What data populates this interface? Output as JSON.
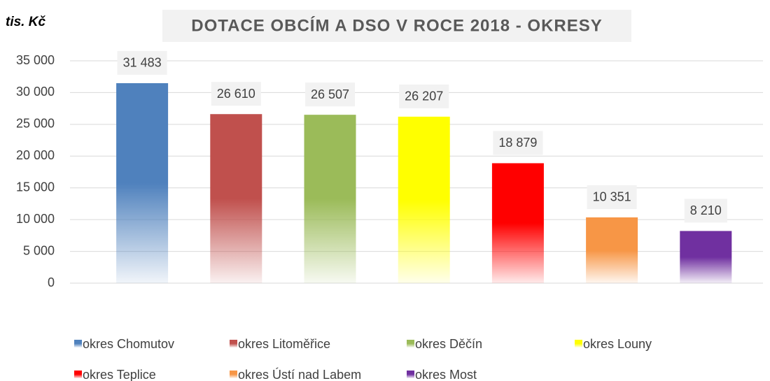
{
  "chart_data": {
    "type": "bar",
    "title": "DOTACE OBCÍM A DSO V ROCE 2018 - OKRESY",
    "y_label": "tis. Kč",
    "categories": [
      null
    ],
    "series": [
      {
        "name": "okres Chomutov",
        "color": "#4f81bd",
        "values": [
          31483
        ],
        "value_labels": [
          "31 483"
        ]
      },
      {
        "name": "okres Litoměřice",
        "color": "#c0504d",
        "values": [
          26610
        ],
        "value_labels": [
          "26 610"
        ]
      },
      {
        "name": "okres Děčín",
        "color": "#9bbb59",
        "values": [
          26507
        ],
        "value_labels": [
          "26 507"
        ]
      },
      {
        "name": "okres Louny",
        "color": "#ffff00",
        "values": [
          26207
        ],
        "value_labels": [
          "26 207"
        ]
      },
      {
        "name": "okres Teplice",
        "color": "#ff0000",
        "values": [
          18879
        ],
        "value_labels": [
          "18 879"
        ]
      },
      {
        "name": "okres Ústí nad Labem",
        "color": "#f79646",
        "values": [
          10351
        ],
        "value_labels": [
          "10 351"
        ]
      },
      {
        "name": "okres Most",
        "color": "#7030a0",
        "values": [
          8210
        ],
        "value_labels": [
          "8 210"
        ]
      }
    ],
    "ylim": [
      0,
      35000
    ],
    "yticks": [
      0,
      {
        "value": 5000,
        "label": "5 000"
      },
      {
        "value": 10000,
        "label": "10 000"
      },
      {
        "value": 15000,
        "label": "15 000"
      },
      {
        "value": 20000,
        "label": "20 000"
      },
      {
        "value": 25000,
        "label": "25 000"
      },
      {
        "value": 30000,
        "label": "30 000"
      },
      {
        "value": 35000,
        "label": "35 000"
      }
    ],
    "grid": true
  }
}
